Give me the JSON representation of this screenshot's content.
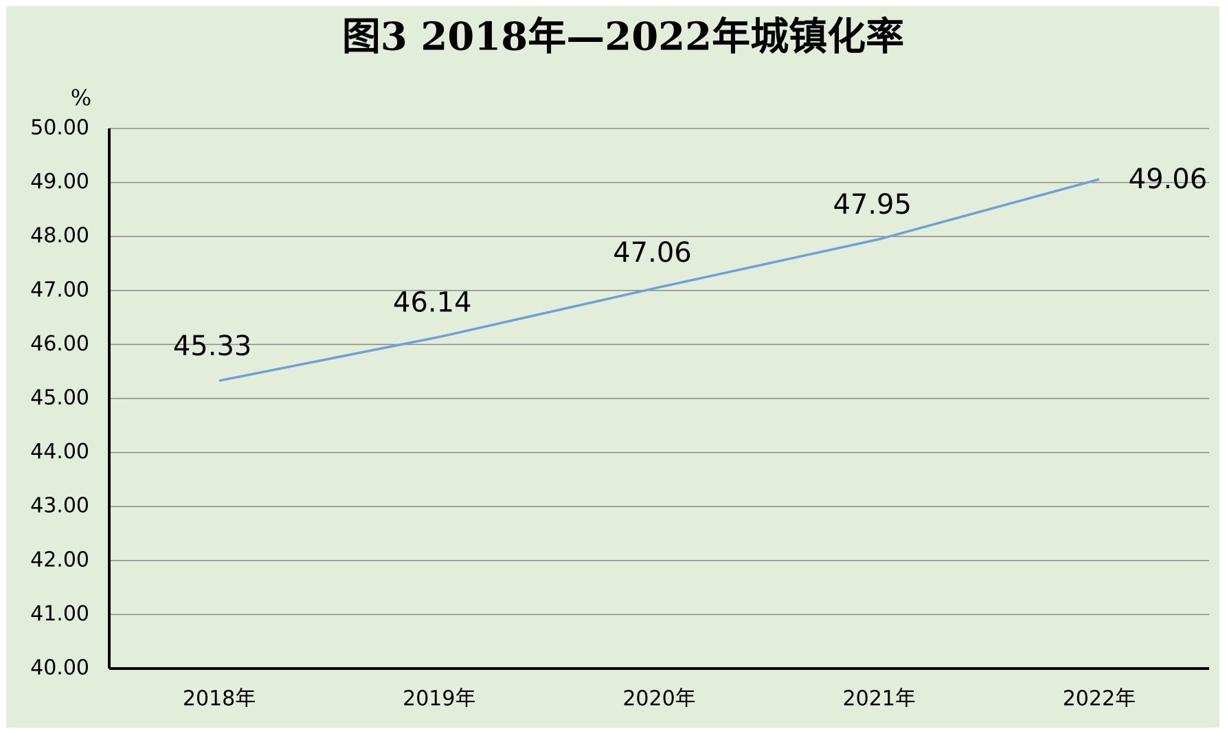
{
  "chart_data": {
    "type": "line",
    "title": "图3   2018年—2022年城镇化率",
    "y_unit": "%",
    "categories": [
      "2018年",
      "2019年",
      "2020年",
      "2021年",
      "2022年"
    ],
    "values": [
      45.33,
      46.14,
      47.06,
      47.95,
      49.06
    ],
    "color": "#6fa0d8",
    "ylim": [
      40,
      50
    ],
    "yticks": [
      {
        "value": 40,
        "label": "40.00"
      },
      {
        "value": 41,
        "label": "41.00"
      },
      {
        "value": 42,
        "label": "42.00"
      },
      {
        "value": 43,
        "label": "43.00"
      },
      {
        "value": 44,
        "label": "44.00"
      },
      {
        "value": 45,
        "label": "45.00"
      },
      {
        "value": 46,
        "label": "46.00"
      },
      {
        "value": 47,
        "label": "47.00"
      },
      {
        "value": 48,
        "label": "48.00"
      },
      {
        "value": 49,
        "label": "49.00"
      },
      {
        "value": 50,
        "label": "50.00"
      }
    ],
    "grid": true
  }
}
